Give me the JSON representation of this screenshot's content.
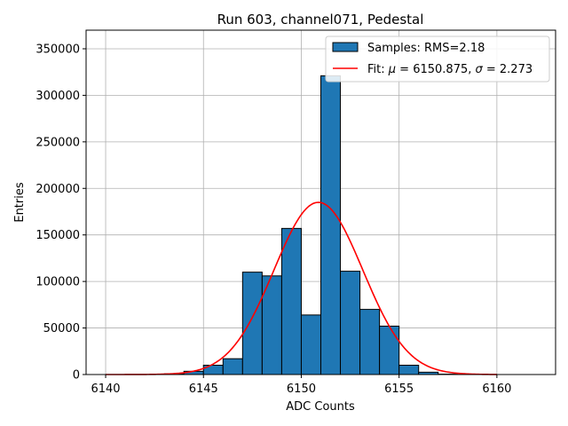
{
  "chart_data": {
    "type": "bar",
    "title": "Run 603, channel071, Pedestal",
    "xlabel": "ADC Counts",
    "ylabel": "Entries",
    "xlim": [
      6139,
      6163
    ],
    "ylim": [
      0,
      370000
    ],
    "xticks": [
      6140,
      6145,
      6150,
      6155,
      6160
    ],
    "yticks": [
      0,
      50000,
      100000,
      150000,
      200000,
      250000,
      300000,
      350000
    ],
    "grid": true,
    "legend_position": "top-right",
    "bar_color": "#1f77b4",
    "fit_color": "#ff0000",
    "histogram": {
      "name": "Samples: RMS=2.18",
      "bin_width": 1,
      "bin_starts": [
        6143,
        6144,
        6145,
        6146,
        6147,
        6148,
        6149,
        6150,
        6151,
        6152,
        6153,
        6154,
        6155,
        6156,
        6157
      ],
      "counts": [
        800,
        3500,
        10000,
        17000,
        110000,
        106000,
        157000,
        64000,
        321000,
        111000,
        70000,
        52000,
        10000,
        2500,
        400
      ]
    },
    "fit": {
      "legend_prefix": "Fit: ",
      "mu_symbol": "μ",
      "mu_text": " = 6150.875, ",
      "sigma_symbol": "σ",
      "sigma_text": " = 2.273",
      "mu": 6150.875,
      "sigma": 2.273,
      "amplitude": 185000,
      "x_range": [
        6140,
        6160
      ]
    }
  }
}
